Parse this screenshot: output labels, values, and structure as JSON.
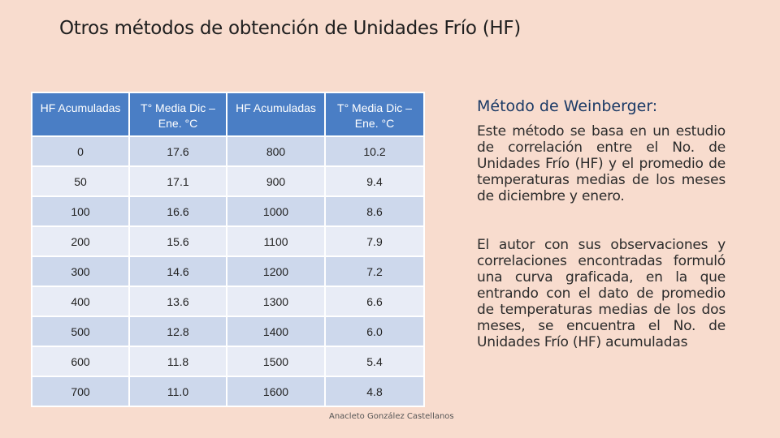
{
  "slide": {
    "title": "Otros métodos de obtención de Unidades Frío (HF)",
    "footer": "Anacleto González Castellanos"
  },
  "table": {
    "headers": [
      "HF Acumuladas",
      "T° Media Dic – Ene.  °C",
      "HF Acumuladas",
      "T° Media Dic – Ene.  °C"
    ],
    "rows": [
      [
        "0",
        "17.6",
        "800",
        "10.2"
      ],
      [
        "50",
        "17.1",
        "900",
        "9.4"
      ],
      [
        "100",
        "16.6",
        "1000",
        "8.6"
      ],
      [
        "200",
        "15.6",
        "1100",
        "7.9"
      ],
      [
        "300",
        "14.6",
        "1200",
        "7.2"
      ],
      [
        "400",
        "13.6",
        "1300",
        "6.6"
      ],
      [
        "500",
        "12.8",
        "1400",
        "6.0"
      ],
      [
        "600",
        "11.8",
        "1500",
        "5.4"
      ],
      [
        "700",
        "11.0",
        "1600",
        "4.8"
      ]
    ]
  },
  "method": {
    "heading": "Método de Weinberger:",
    "paragraph1": "Este método se basa en un estudio de correlación entre el No. de Unidades Frío (HF) y el promedio de temperaturas medias de los meses de diciembre y enero.",
    "paragraph2": "El autor con sus observaciones y correlaciones encontradas formuló una curva graficada, en la que entrando con el dato de promedio de temperaturas medias de los dos meses, se encuentra el No. de Unidades Frío (HF) acumuladas"
  }
}
